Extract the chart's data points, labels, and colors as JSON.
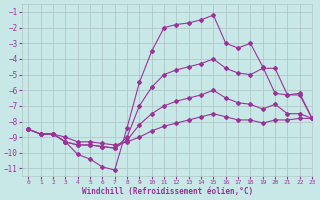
{
  "xlabel": "Windchill (Refroidissement éolien,°C)",
  "xlim": [
    -0.5,
    23
  ],
  "ylim": [
    -11.5,
    -0.5
  ],
  "xticks": [
    0,
    1,
    2,
    3,
    4,
    5,
    6,
    7,
    8,
    9,
    10,
    11,
    12,
    13,
    14,
    15,
    16,
    17,
    18,
    19,
    20,
    21,
    22,
    23
  ],
  "yticks": [
    -11,
    -10,
    -9,
    -8,
    -7,
    -6,
    -5,
    -4,
    -3,
    -2,
    -1
  ],
  "bg_color": "#c8e8e8",
  "grid_color": "#b0c8c8",
  "line_color": "#993399",
  "line1_x": [
    0,
    1,
    2,
    3,
    4,
    5,
    6,
    7,
    8,
    9,
    10,
    11,
    12,
    13,
    14,
    15,
    16,
    17,
    18,
    19,
    20,
    21,
    22,
    23
  ],
  "line1_y": [
    -8.5,
    -8.8,
    -8.8,
    -9.3,
    -10.1,
    -10.4,
    -10.9,
    -11.1,
    -8.4,
    -5.5,
    -3.5,
    -2.0,
    -1.8,
    -1.7,
    -1.5,
    -1.2,
    -3.0,
    -3.3,
    -3.0,
    -4.5,
    -6.2,
    -6.3,
    -6.2,
    -7.8
  ],
  "line2_x": [
    0,
    1,
    2,
    3,
    4,
    5,
    6,
    7,
    8,
    9,
    10,
    11,
    12,
    13,
    14,
    15,
    16,
    17,
    18,
    19,
    20,
    21,
    22,
    23
  ],
  "line2_y": [
    -8.5,
    -8.8,
    -8.8,
    -9.3,
    -9.5,
    -9.5,
    -9.6,
    -9.7,
    -9.0,
    -7.0,
    -5.8,
    -5.0,
    -4.7,
    -4.5,
    -4.3,
    -4.0,
    -4.6,
    -4.9,
    -5.0,
    -4.6,
    -4.6,
    -6.3,
    -6.3,
    -7.8
  ],
  "line3_x": [
    0,
    1,
    2,
    3,
    4,
    5,
    6,
    7,
    8,
    9,
    10,
    11,
    12,
    13,
    14,
    15,
    16,
    17,
    18,
    19,
    20,
    21,
    22,
    23
  ],
  "line3_y": [
    -8.5,
    -8.8,
    -8.8,
    -9.3,
    -9.5,
    -9.5,
    -9.6,
    -9.7,
    -9.2,
    -8.2,
    -7.5,
    -7.0,
    -6.7,
    -6.5,
    -6.3,
    -6.0,
    -6.5,
    -6.8,
    -6.9,
    -7.2,
    -6.9,
    -7.5,
    -7.5,
    -7.8
  ],
  "line4_x": [
    0,
    1,
    2,
    3,
    4,
    5,
    6,
    7,
    8,
    9,
    10,
    11,
    12,
    13,
    14,
    15,
    16,
    17,
    18,
    19,
    20,
    21,
    22,
    23
  ],
  "line4_y": [
    -8.5,
    -8.8,
    -8.8,
    -9.0,
    -9.3,
    -9.3,
    -9.4,
    -9.5,
    -9.3,
    -9.0,
    -8.6,
    -8.3,
    -8.1,
    -7.9,
    -7.7,
    -7.5,
    -7.7,
    -7.9,
    -7.9,
    -8.1,
    -7.9,
    -7.9,
    -7.8,
    -7.8
  ]
}
